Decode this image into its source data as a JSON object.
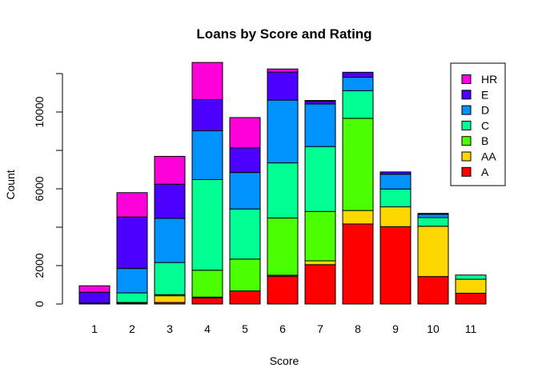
{
  "chart_data": {
    "type": "bar",
    "stacked": true,
    "title": "Loans by Score and Rating",
    "xlabel": "Score",
    "ylabel": "Count",
    "categories": [
      "1",
      "2",
      "3",
      "4",
      "5",
      "6",
      "7",
      "8",
      "9",
      "10",
      "11"
    ],
    "yticks": [
      0,
      2000,
      6000,
      10000
    ],
    "ylim": [
      0,
      12300
    ],
    "grid": false,
    "legend_position": "top-right",
    "series": [
      {
        "name": "A",
        "color": "#FF0000",
        "values": [
          30,
          50,
          80,
          320,
          680,
          1450,
          2050,
          4170,
          4030,
          1430,
          560
        ]
      },
      {
        "name": "AA",
        "color": "#FFD700",
        "values": [
          20,
          30,
          350,
          40,
          0,
          50,
          200,
          700,
          1030,
          2620,
          730
        ]
      },
      {
        "name": "B",
        "color": "#4CFF00",
        "values": [
          0,
          0,
          60,
          1400,
          1660,
          2980,
          2570,
          4800,
          0,
          0,
          0
        ]
      },
      {
        "name": "C",
        "color": "#00FF92",
        "values": [
          0,
          500,
          1670,
          4720,
          2610,
          2870,
          3380,
          1440,
          930,
          450,
          220
        ]
      },
      {
        "name": "D",
        "color": "#0092FF",
        "values": [
          0,
          1270,
          2300,
          2540,
          1900,
          3270,
          2220,
          700,
          770,
          170,
          0
        ]
      },
      {
        "name": "E",
        "color": "#4C00FF",
        "values": [
          560,
          2680,
          1780,
          1630,
          1280,
          1460,
          150,
          260,
          120,
          50,
          0
        ]
      },
      {
        "name": "HR",
        "color": "#FF00DB",
        "values": [
          340,
          1270,
          1450,
          1930,
          1580,
          160,
          30,
          0,
          0,
          0,
          0
        ]
      }
    ]
  }
}
